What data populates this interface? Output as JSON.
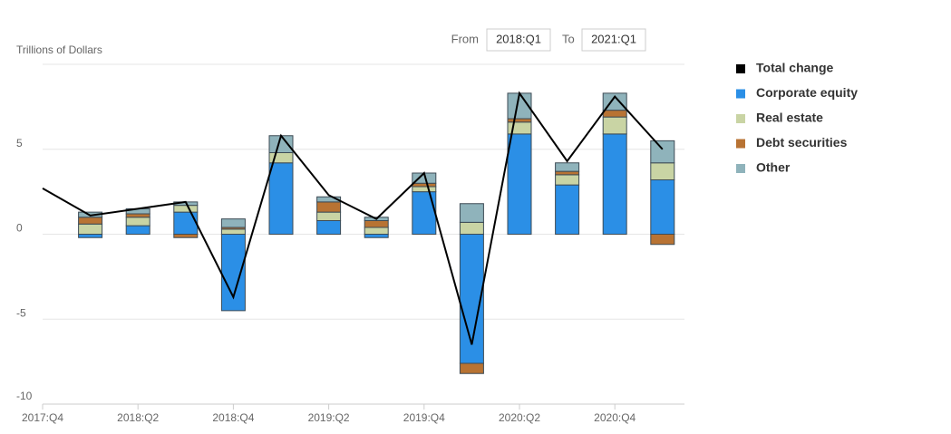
{
  "controls": {
    "from_label": "From",
    "from_value": "2018:Q1",
    "to_label": "To",
    "to_value": "2021:Q1"
  },
  "chart_data": {
    "type": "bar",
    "stacked": true,
    "ylabel": "Trillions of Dollars",
    "categories": [
      "2017:Q4",
      null,
      "2018:Q2",
      null,
      "2018:Q4",
      null,
      "2019:Q2",
      null,
      "2019:Q4",
      null,
      "2020:Q2",
      null,
      "2020:Q4",
      null
    ],
    "ylim": [
      -10,
      10
    ],
    "yticks": [
      -10,
      -5,
      0,
      5
    ],
    "grid": true,
    "series": [
      {
        "name": "Total change",
        "type": "line",
        "color": "#000000",
        "values": [
          2.7,
          1.1,
          1.5,
          1.9,
          -3.7,
          5.8,
          2.3,
          0.9,
          3.6,
          -6.5,
          8.3,
          4.3,
          8.1,
          5.0
        ]
      },
      {
        "name": "Corporate equity",
        "type": "bar",
        "color": "#2b8fe6",
        "values": [
          null,
          -0.2,
          0.5,
          1.3,
          -4.5,
          4.2,
          0.8,
          -0.2,
          2.5,
          -7.6,
          5.9,
          2.9,
          5.9,
          3.2
        ]
      },
      {
        "name": "Real estate",
        "type": "bar",
        "color": "#c9d4a4",
        "values": [
          null,
          0.6,
          0.5,
          0.4,
          0.3,
          0.6,
          0.5,
          0.4,
          0.3,
          0.7,
          0.7,
          0.6,
          1.0,
          1.0
        ]
      },
      {
        "name": "Debt securities",
        "type": "bar",
        "color": "#b87333",
        "values": [
          null,
          0.4,
          0.2,
          -0.2,
          0.1,
          0.0,
          0.6,
          0.4,
          0.2,
          -0.6,
          0.2,
          0.2,
          0.4,
          -0.6
        ]
      },
      {
        "name": "Other",
        "type": "bar",
        "color": "#8fb3bb",
        "values": [
          null,
          0.3,
          0.3,
          0.2,
          0.5,
          1.0,
          0.3,
          0.2,
          0.6,
          1.1,
          1.5,
          0.5,
          1.0,
          1.3
        ]
      }
    ]
  }
}
